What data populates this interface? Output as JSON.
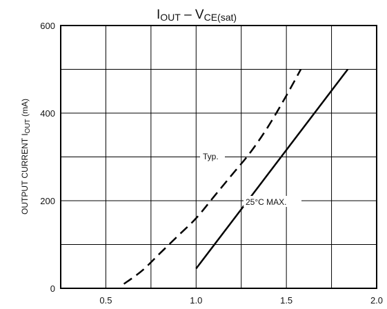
{
  "chart_data": {
    "type": "line",
    "title": {
      "part1_main": "I",
      "part1_sub": "OUT",
      "separator": "–",
      "part2_main": "V",
      "part2_sub": "CE(sat)"
    },
    "ylabel": {
      "text": "OUTPUT CURRENT",
      "symbol_main": "I",
      "symbol_sub": "OUT",
      "unit": "(mA)"
    },
    "xlabel": "",
    "xlim": [
      0.25,
      2.0
    ],
    "ylim": [
      0,
      600
    ],
    "x_ticks": [
      "0.5",
      "1.0",
      "1.5",
      "2.0"
    ],
    "y_ticks": [
      "0",
      "200",
      "400",
      "600"
    ],
    "grid": true,
    "series": [
      {
        "name": "Typ.",
        "style": "dashed",
        "color": "#000000",
        "x": [
          0.6,
          0.7,
          0.8,
          0.9,
          1.0,
          1.1,
          1.2,
          1.3,
          1.4,
          1.5,
          1.58
        ],
        "y": [
          10,
          40,
          80,
          120,
          160,
          210,
          260,
          310,
          370,
          440,
          500
        ]
      },
      {
        "name": "25°C MAX.",
        "style": "solid",
        "color": "#000000",
        "x": [
          1.0,
          1.84
        ],
        "y": [
          45,
          500
        ]
      }
    ]
  }
}
